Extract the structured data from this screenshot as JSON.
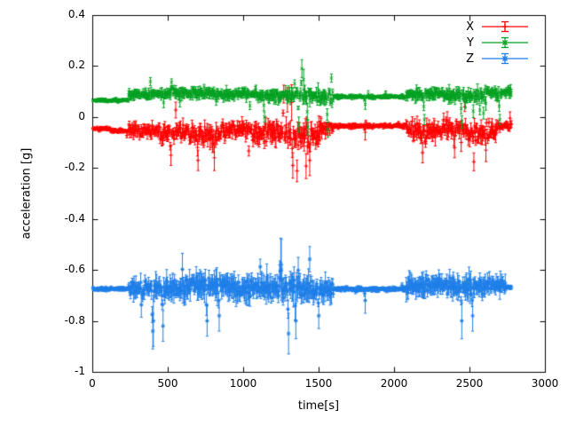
{
  "chart_data": {
    "type": "line",
    "style": "points-with-yerrorbars",
    "title": "",
    "xlabel": "time[s]",
    "ylabel": "acceleration [g]",
    "xlim": [
      0,
      3000
    ],
    "ylim": [
      -1,
      0.4
    ],
    "xticks": [
      0,
      500,
      1000,
      1500,
      2000,
      2500,
      3000
    ],
    "yticks": [
      0.4,
      0.2,
      0,
      -0.2,
      -0.4,
      -0.6,
      -0.8,
      -1
    ],
    "grid": false,
    "legend": {
      "position": "top-right",
      "entries": [
        {
          "label": "X",
          "color": "#ff0000",
          "marker": "plus"
        },
        {
          "label": "Y",
          "color": "#00a020",
          "marker": "cross"
        },
        {
          "label": "Z",
          "color": "#1f7fe8",
          "marker": "star"
        }
      ]
    },
    "sampling": {
      "t_start": 5,
      "t_end": 2780,
      "step": 4
    },
    "series": [
      {
        "name": "X",
        "color": "#ff0000",
        "marker": "plus",
        "seed": 101,
        "baseline": -0.05,
        "segments": [
          [
            0,
            120,
            -0.045,
            0.004,
            0.008
          ],
          [
            120,
            240,
            -0.055,
            0.005,
            0.009
          ],
          [
            240,
            420,
            -0.05,
            0.018,
            0.025
          ],
          [
            420,
            640,
            -0.06,
            0.025,
            0.03
          ],
          [
            640,
            860,
            -0.07,
            0.03,
            0.035
          ],
          [
            860,
            1060,
            -0.05,
            0.022,
            0.028
          ],
          [
            1060,
            1280,
            -0.06,
            0.03,
            0.035
          ],
          [
            1280,
            1520,
            -0.07,
            0.038,
            0.042
          ],
          [
            1520,
            1600,
            -0.05,
            0.02,
            0.025
          ],
          [
            1600,
            2080,
            -0.035,
            0.004,
            0.009
          ],
          [
            2080,
            2320,
            -0.055,
            0.028,
            0.032
          ],
          [
            2320,
            2480,
            -0.04,
            0.022,
            0.028
          ],
          [
            2480,
            2680,
            -0.06,
            0.03,
            0.034
          ],
          [
            2680,
            2781,
            -0.035,
            0.01,
            0.015
          ]
        ],
        "spikes": [
          [
            520,
            -0.15,
            0.04
          ],
          [
            700,
            -0.17,
            0.04
          ],
          [
            810,
            -0.16,
            0.05
          ],
          [
            1270,
            0.09,
            0.035
          ],
          [
            1330,
            -0.19,
            0.05
          ],
          [
            1440,
            -0.17,
            0.06
          ],
          [
            1810,
            -0.06,
            0.03
          ],
          [
            2190,
            -0.14,
            0.04
          ],
          [
            2400,
            -0.12,
            0.04
          ],
          [
            2610,
            -0.13,
            0.045
          ]
        ]
      },
      {
        "name": "Y",
        "color": "#00a020",
        "marker": "cross",
        "seed": 202,
        "baseline": 0.08,
        "segments": [
          [
            0,
            240,
            0.065,
            0.004,
            0.007
          ],
          [
            240,
            500,
            0.09,
            0.012,
            0.018
          ],
          [
            500,
            800,
            0.095,
            0.014,
            0.02
          ],
          [
            800,
            1100,
            0.09,
            0.013,
            0.02
          ],
          [
            1100,
            1380,
            0.085,
            0.016,
            0.022
          ],
          [
            1380,
            1600,
            0.08,
            0.022,
            0.028
          ],
          [
            1600,
            2080,
            0.08,
            0.004,
            0.008
          ],
          [
            2080,
            2350,
            0.09,
            0.016,
            0.022
          ],
          [
            2350,
            2600,
            0.085,
            0.018,
            0.024
          ],
          [
            2600,
            2781,
            0.095,
            0.014,
            0.02
          ]
        ],
        "spikes": [
          [
            1390,
            0.19,
            0.035
          ],
          [
            1370,
            -0.03,
            0.03
          ],
          [
            1430,
            -0.04,
            0.03
          ],
          [
            1560,
            -0.05,
            0.03
          ],
          [
            1140,
            0.0,
            0.02
          ],
          [
            1810,
            0.05,
            0.02
          ],
          [
            2200,
            -0.01,
            0.02
          ],
          [
            2450,
            -0.02,
            0.025
          ],
          [
            2700,
            -0.01,
            0.02
          ]
        ]
      },
      {
        "name": "Z",
        "color": "#1f7fe8",
        "marker": "star",
        "seed": 303,
        "baseline": -0.67,
        "segments": [
          [
            0,
            240,
            -0.675,
            0.004,
            0.008
          ],
          [
            240,
            420,
            -0.67,
            0.02,
            0.035
          ],
          [
            420,
            640,
            -0.675,
            0.025,
            0.045
          ],
          [
            640,
            900,
            -0.66,
            0.028,
            0.05
          ],
          [
            900,
            1150,
            -0.67,
            0.025,
            0.045
          ],
          [
            1150,
            1450,
            -0.67,
            0.03,
            0.055
          ],
          [
            1450,
            1600,
            -0.675,
            0.022,
            0.04
          ],
          [
            1600,
            2080,
            -0.675,
            0.004,
            0.01
          ],
          [
            2080,
            2350,
            -0.66,
            0.022,
            0.04
          ],
          [
            2350,
            2600,
            -0.665,
            0.025,
            0.045
          ],
          [
            2600,
            2740,
            -0.66,
            0.02,
            0.035
          ],
          [
            2740,
            2781,
            -0.67,
            0.006,
            0.01
          ]
        ],
        "spikes": [
          [
            400,
            -0.88,
            0.07
          ],
          [
            405,
            -0.8,
            0.1
          ],
          [
            470,
            -0.82,
            0.06
          ],
          [
            760,
            -0.8,
            0.06
          ],
          [
            840,
            -0.78,
            0.06
          ],
          [
            1250,
            -0.55,
            0.1
          ],
          [
            1255,
            -0.6,
            0.12
          ],
          [
            1300,
            -0.85,
            0.08
          ],
          [
            1350,
            -0.8,
            0.07
          ],
          [
            1500,
            -0.78,
            0.05
          ],
          [
            1810,
            -0.72,
            0.05
          ],
          [
            2450,
            -0.8,
            0.07
          ],
          [
            2520,
            -0.78,
            0.06
          ]
        ]
      }
    ]
  }
}
